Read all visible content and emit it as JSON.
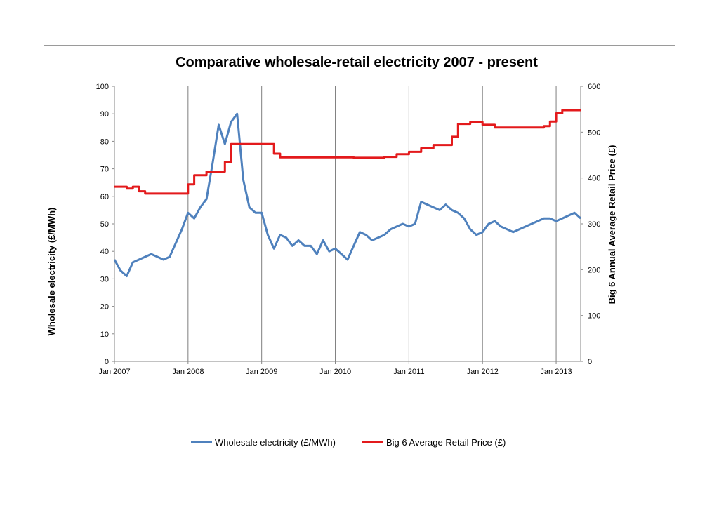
{
  "chart_data": {
    "type": "line",
    "title": "Comparative wholesale-retail electricity 2007 - present",
    "ylabel_left": "Wholesale electricity (£/MWh)",
    "ylabel_right": "Big 6 Annual Average Retail Price (£)",
    "xlabel": "",
    "x_range": [
      "2007-01",
      "2013-05"
    ],
    "x_tick_labels": [
      "Jan 2007",
      "Jan 2008",
      "Jan 2009",
      "Jan 2010",
      "Jan 2011",
      "Jan 2012",
      "Jan 2013"
    ],
    "x_gridlines": [
      "2008-01",
      "2009-01",
      "2010-01",
      "2011-01",
      "2012-01",
      "2013-01"
    ],
    "ylim_left": [
      0,
      100
    ],
    "y_ticks_left": [
      0,
      10,
      20,
      30,
      40,
      50,
      60,
      70,
      80,
      90,
      100
    ],
    "ylim_right": [
      0,
      600
    ],
    "y_ticks_right": [
      0,
      100,
      200,
      300,
      400,
      500,
      600
    ],
    "legend_position": "bottom",
    "series": [
      {
        "name": "Wholesale electricity (£/MWh)",
        "axis": "left",
        "color": "#4f81bd",
        "points": [
          [
            "2007-01",
            37
          ],
          [
            "2007-02",
            33
          ],
          [
            "2007-03",
            31
          ],
          [
            "2007-04",
            36
          ],
          [
            "2007-05",
            37
          ],
          [
            "2007-06",
            38
          ],
          [
            "2007-07",
            39
          ],
          [
            "2007-08",
            38
          ],
          [
            "2007-09",
            37
          ],
          [
            "2007-10",
            38
          ],
          [
            "2007-11",
            43
          ],
          [
            "2007-12",
            48
          ],
          [
            "2008-01",
            54
          ],
          [
            "2008-02",
            52
          ],
          [
            "2008-03",
            56
          ],
          [
            "2008-04",
            59
          ],
          [
            "2008-05",
            72
          ],
          [
            "2008-06",
            86
          ],
          [
            "2008-07",
            79
          ],
          [
            "2008-08",
            87
          ],
          [
            "2008-09",
            90
          ],
          [
            "2008-10",
            66
          ],
          [
            "2008-11",
            56
          ],
          [
            "2008-12",
            54
          ],
          [
            "2009-01",
            54
          ],
          [
            "2009-02",
            46
          ],
          [
            "2009-03",
            41
          ],
          [
            "2009-04",
            46
          ],
          [
            "2009-05",
            45
          ],
          [
            "2009-06",
            42
          ],
          [
            "2009-07",
            44
          ],
          [
            "2009-08",
            42
          ],
          [
            "2009-09",
            42
          ],
          [
            "2009-10",
            39
          ],
          [
            "2009-11",
            44
          ],
          [
            "2009-12",
            40
          ],
          [
            "2010-01",
            41
          ],
          [
            "2010-02",
            39
          ],
          [
            "2010-03",
            37
          ],
          [
            "2010-04",
            42
          ],
          [
            "2010-05",
            47
          ],
          [
            "2010-06",
            46
          ],
          [
            "2010-07",
            44
          ],
          [
            "2010-08",
            45
          ],
          [
            "2010-09",
            46
          ],
          [
            "2010-10",
            48
          ],
          [
            "2010-11",
            49
          ],
          [
            "2010-12",
            50
          ],
          [
            "2011-01",
            49
          ],
          [
            "2011-02",
            50
          ],
          [
            "2011-03",
            58
          ],
          [
            "2011-04",
            57
          ],
          [
            "2011-05",
            56
          ],
          [
            "2011-06",
            55
          ],
          [
            "2011-07",
            57
          ],
          [
            "2011-08",
            55
          ],
          [
            "2011-09",
            54
          ],
          [
            "2011-10",
            52
          ],
          [
            "2011-11",
            48
          ],
          [
            "2011-12",
            46
          ],
          [
            "2012-01",
            47
          ],
          [
            "2012-02",
            50
          ],
          [
            "2012-03",
            51
          ],
          [
            "2012-04",
            49
          ],
          [
            "2012-05",
            48
          ],
          [
            "2012-06",
            47
          ],
          [
            "2012-07",
            48
          ],
          [
            "2012-08",
            49
          ],
          [
            "2012-09",
            50
          ],
          [
            "2012-10",
            51
          ],
          [
            "2012-11",
            52
          ],
          [
            "2012-12",
            52
          ],
          [
            "2013-01",
            51
          ],
          [
            "2013-02",
            52
          ],
          [
            "2013-03",
            53
          ],
          [
            "2013-04",
            54
          ],
          [
            "2013-05",
            52
          ]
        ]
      },
      {
        "name": "Big 6 Average Retail Price (£)",
        "axis": "right",
        "color": "#e31a1c",
        "step": true,
        "points": [
          [
            "2007-01",
            381
          ],
          [
            "2007-03",
            377
          ],
          [
            "2007-04",
            381
          ],
          [
            "2007-05",
            371
          ],
          [
            "2007-06",
            366
          ],
          [
            "2008-01",
            386
          ],
          [
            "2008-02",
            406
          ],
          [
            "2008-04",
            414
          ],
          [
            "2008-07",
            435
          ],
          [
            "2008-08",
            474
          ],
          [
            "2009-03",
            453
          ],
          [
            "2009-04",
            445
          ],
          [
            "2010-04",
            444
          ],
          [
            "2010-09",
            446
          ],
          [
            "2010-11",
            452
          ],
          [
            "2011-01",
            457
          ],
          [
            "2011-03",
            465
          ],
          [
            "2011-05",
            472
          ],
          [
            "2011-08",
            490
          ],
          [
            "2011-09",
            518
          ],
          [
            "2011-11",
            522
          ],
          [
            "2012-01",
            516
          ],
          [
            "2012-03",
            510
          ],
          [
            "2012-11",
            513
          ],
          [
            "2012-12",
            523
          ],
          [
            "2013-01",
            541
          ],
          [
            "2013-02",
            548
          ],
          [
            "2013-05",
            548
          ]
        ]
      }
    ]
  }
}
